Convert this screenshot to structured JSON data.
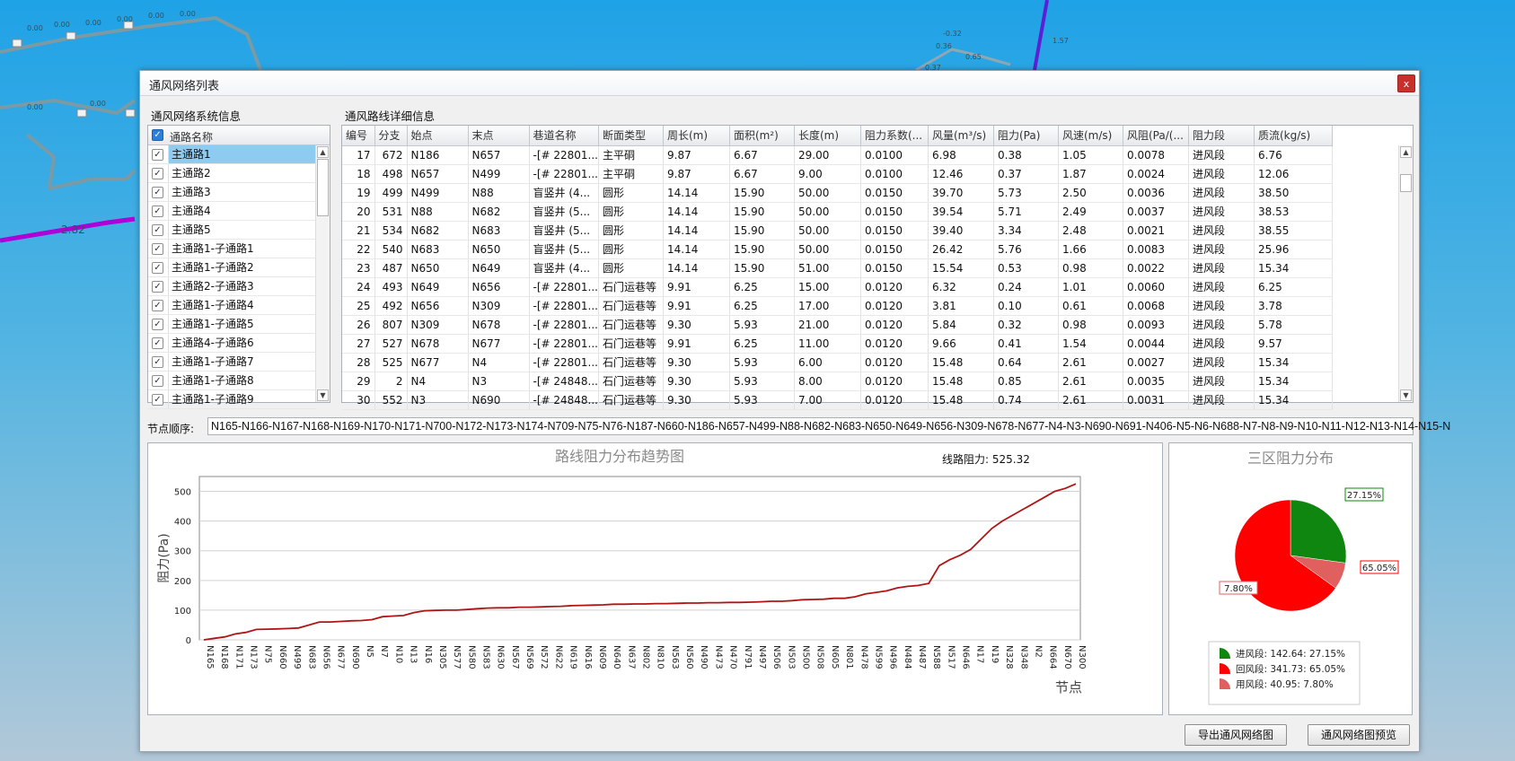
{
  "window": {
    "title": "通风网络列表",
    "close_label": "x"
  },
  "left_panel": {
    "label": "通风网络系统信息",
    "header": "通路名称",
    "items": [
      {
        "name": "主通路1",
        "checked": true,
        "selected": true
      },
      {
        "name": "主通路2",
        "checked": true
      },
      {
        "name": "主通路3",
        "checked": true
      },
      {
        "name": "主通路4",
        "checked": true
      },
      {
        "name": "主通路5",
        "checked": true
      },
      {
        "name": "主通路1-子通路1",
        "checked": true
      },
      {
        "name": "主通路1-子通路2",
        "checked": true
      },
      {
        "name": "主通路2-子通路3",
        "checked": true
      },
      {
        "name": "主通路1-子通路4",
        "checked": true
      },
      {
        "name": "主通路1-子通路5",
        "checked": true
      },
      {
        "name": "主通路4-子通路6",
        "checked": true
      },
      {
        "name": "主通路1-子通路7",
        "checked": true
      },
      {
        "name": "主通路1-子通路8",
        "checked": true
      },
      {
        "name": "主通路1-子通路9",
        "checked": true
      }
    ]
  },
  "detail": {
    "label": "通风路线详细信息",
    "columns": [
      "编号",
      "分支",
      "始点",
      "末点",
      "巷道名称",
      "断面类型",
      "周长(m)",
      "面积(m²)",
      "长度(m)",
      "阻力系数(...",
      "风量(m³/s)",
      "阻力(Pa)",
      "风速(m/s)",
      "风阻(Pa/(...",
      "阻力段",
      "质流(kg/s)"
    ],
    "rows": [
      [
        "17",
        "672",
        "N186",
        "N657",
        "-[# 22801...",
        "主平硐",
        "9.87",
        "6.67",
        "29.00",
        "0.0100",
        "6.98",
        "0.38",
        "1.05",
        "0.0078",
        "进风段",
        "6.76"
      ],
      [
        "18",
        "498",
        "N657",
        "N499",
        "-[# 22801...",
        "主平硐",
        "9.87",
        "6.67",
        "9.00",
        "0.0100",
        "12.46",
        "0.37",
        "1.87",
        "0.0024",
        "进风段",
        "12.06"
      ],
      [
        "19",
        "499",
        "N499",
        "N88",
        "盲竖井 (4...",
        "圆形",
        "14.14",
        "15.90",
        "50.00",
        "0.0150",
        "39.70",
        "5.73",
        "2.50",
        "0.0036",
        "进风段",
        "38.50"
      ],
      [
        "20",
        "531",
        "N88",
        "N682",
        "盲竖井 (5...",
        "圆形",
        "14.14",
        "15.90",
        "50.00",
        "0.0150",
        "39.54",
        "5.71",
        "2.49",
        "0.0037",
        "进风段",
        "38.53"
      ],
      [
        "21",
        "534",
        "N682",
        "N683",
        "盲竖井 (5...",
        "圆形",
        "14.14",
        "15.90",
        "50.00",
        "0.0150",
        "39.40",
        "3.34",
        "2.48",
        "0.0021",
        "进风段",
        "38.55"
      ],
      [
        "22",
        "540",
        "N683",
        "N650",
        "盲竖井 (5...",
        "圆形",
        "14.14",
        "15.90",
        "50.00",
        "0.0150",
        "26.42",
        "5.76",
        "1.66",
        "0.0083",
        "进风段",
        "25.96"
      ],
      [
        "23",
        "487",
        "N650",
        "N649",
        "盲竖井 (4...",
        "圆形",
        "14.14",
        "15.90",
        "51.00",
        "0.0150",
        "15.54",
        "0.53",
        "0.98",
        "0.0022",
        "进风段",
        "15.34"
      ],
      [
        "24",
        "493",
        "N649",
        "N656",
        "-[# 22801...",
        "石门运巷等",
        "9.91",
        "6.25",
        "15.00",
        "0.0120",
        "6.32",
        "0.24",
        "1.01",
        "0.0060",
        "进风段",
        "6.25"
      ],
      [
        "25",
        "492",
        "N656",
        "N309",
        "-[# 22801...",
        "石门运巷等",
        "9.91",
        "6.25",
        "17.00",
        "0.0120",
        "3.81",
        "0.10",
        "0.61",
        "0.0068",
        "进风段",
        "3.78"
      ],
      [
        "26",
        "807",
        "N309",
        "N678",
        "-[# 22801...",
        "石门运巷等",
        "9.30",
        "5.93",
        "21.00",
        "0.0120",
        "5.84",
        "0.32",
        "0.98",
        "0.0093",
        "进风段",
        "5.78"
      ],
      [
        "27",
        "527",
        "N678",
        "N677",
        "-[# 22801...",
        "石门运巷等",
        "9.91",
        "6.25",
        "11.00",
        "0.0120",
        "9.66",
        "0.41",
        "1.54",
        "0.0044",
        "进风段",
        "9.57"
      ],
      [
        "28",
        "525",
        "N677",
        "N4",
        "-[# 22801...",
        "石门运巷等",
        "9.30",
        "5.93",
        "6.00",
        "0.0120",
        "15.48",
        "0.64",
        "2.61",
        "0.0027",
        "进风段",
        "15.34"
      ],
      [
        "29",
        "2",
        "N4",
        "N3",
        "-[# 24848...",
        "石门运巷等",
        "9.30",
        "5.93",
        "8.00",
        "0.0120",
        "15.48",
        "0.85",
        "2.61",
        "0.0035",
        "进风段",
        "15.34"
      ],
      [
        "30",
        "552",
        "N3",
        "N690",
        "-[# 24848...",
        "石门运巷等",
        "9.30",
        "5.93",
        "7.00",
        "0.0120",
        "15.48",
        "0.74",
        "2.61",
        "0.0031",
        "进风段",
        "15.34"
      ]
    ]
  },
  "node_sequence": {
    "label": "节点顺序:",
    "value": "N165-N166-N167-N168-N169-N170-N171-N700-N172-N173-N174-N709-N75-N76-N187-N660-N186-N657-N499-N88-N682-N683-N650-N649-N656-N309-N678-N677-N4-N3-N690-N691-N406-N5-N6-N688-N7-N8-N9-N10-N11-N12-N13-N14-N15-N"
  },
  "chart_data": [
    {
      "type": "line",
      "title": "路线阻力分布趋势图",
      "annotation": "线路阻力: 525.32",
      "xlabel": "节点",
      "ylabel": "阻力(Pa)",
      "ylim": [
        0,
        550
      ],
      "yticks": [
        0,
        100,
        200,
        300,
        400,
        500
      ],
      "grid": true,
      "color": "#b01515",
      "x_tick_labels": [
        "N165",
        "N168",
        "N171",
        "N173",
        "N75",
        "N660",
        "N499",
        "N683",
        "N656",
        "N677",
        "N690",
        "N5",
        "N7",
        "N10",
        "N13",
        "N16",
        "N305",
        "N577",
        "N580",
        "N583",
        "N630",
        "N567",
        "N569",
        "N572",
        "N622",
        "N619",
        "N616",
        "N609",
        "N640",
        "N637",
        "N802",
        "N810",
        "N563",
        "N560",
        "N490",
        "N473",
        "N470",
        "N791",
        "N497",
        "N506",
        "N503",
        "N500",
        "N508",
        "N605",
        "N801",
        "N478",
        "N599",
        "N496",
        "N484",
        "N487",
        "N588",
        "N517",
        "N646",
        "N17",
        "N19",
        "N328",
        "N348",
        "N2",
        "N664",
        "N670",
        "N300"
      ],
      "values": [
        0,
        5,
        10,
        20,
        25,
        35,
        36,
        37,
        38,
        40,
        50,
        60,
        60,
        62,
        64,
        65,
        68,
        78,
        80,
        82,
        92,
        98,
        99,
        100,
        100,
        102,
        105,
        107,
        108,
        108,
        110,
        110,
        111,
        112,
        113,
        115,
        116,
        117,
        118,
        120,
        120,
        121,
        121,
        122,
        122,
        123,
        124,
        124,
        125,
        125,
        126,
        126,
        127,
        128,
        130,
        130,
        132,
        135,
        136,
        137,
        140,
        140,
        145,
        155,
        160,
        165,
        175,
        180,
        183,
        190,
        250,
        270,
        285,
        305,
        340,
        375,
        400,
        420,
        440,
        460,
        480,
        500,
        510,
        525.32
      ]
    },
    {
      "type": "pie",
      "title": "三区阻力分布",
      "slices": [
        {
          "name": "进风段",
          "value": 142.64,
          "percent": 27.15,
          "label": "27.15%",
          "legend": "进风段: 142.64: 27.15%",
          "color": "#0f860f"
        },
        {
          "name": "回风段",
          "value": 341.73,
          "percent": 65.05,
          "label": "65.05%",
          "legend": "回风段: 341.73: 65.05%",
          "color": "#ff0000"
        },
        {
          "name": "用风段",
          "value": 40.95,
          "percent": 7.8,
          "label": "7.80%",
          "legend": "用风段: 40.95: 7.80%",
          "color": "#e06060"
        }
      ]
    }
  ],
  "buttons": {
    "export": "导出通风网络图",
    "preview": "通风网络图预览"
  },
  "background_labels": [
    "0.00",
    "0.00",
    "0.00",
    "0.00",
    "0.00",
    "0.00",
    "0.00",
    "0.00",
    "2.82",
    "-0.32",
    "0.36",
    "1.57",
    "0.37",
    "0.65"
  ]
}
